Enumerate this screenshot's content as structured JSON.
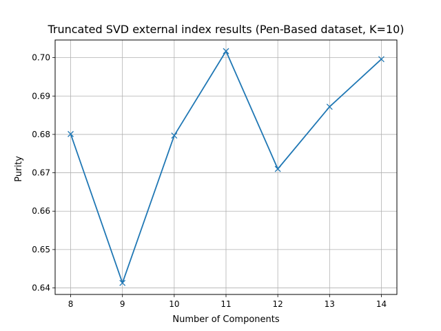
{
  "chart_data": {
    "type": "line",
    "title": "Truncated SVD external index results (Pen-Based dataset, K=10)",
    "xlabel": "Number of Components",
    "ylabel": "Purity",
    "x": [
      8,
      9,
      10,
      11,
      12,
      13,
      14
    ],
    "series": [
      {
        "values": [
          0.6801,
          0.6413,
          0.6797,
          0.7017,
          0.671,
          0.6872,
          0.6996
        ],
        "color": "#1f77b4",
        "marker": "x"
      }
    ],
    "xlim": [
      7.7,
      14.3
    ],
    "ylim": [
      0.6383,
      0.7046
    ],
    "xticks": [
      8,
      9,
      10,
      11,
      12,
      13,
      14
    ],
    "yticks": [
      0.64,
      0.65,
      0.66,
      0.67,
      0.68,
      0.69,
      0.7
    ],
    "ytick_labels": [
      "0.64",
      "0.65",
      "0.66",
      "0.67",
      "0.68",
      "0.69",
      "0.70"
    ],
    "grid": true,
    "legend": "none"
  }
}
